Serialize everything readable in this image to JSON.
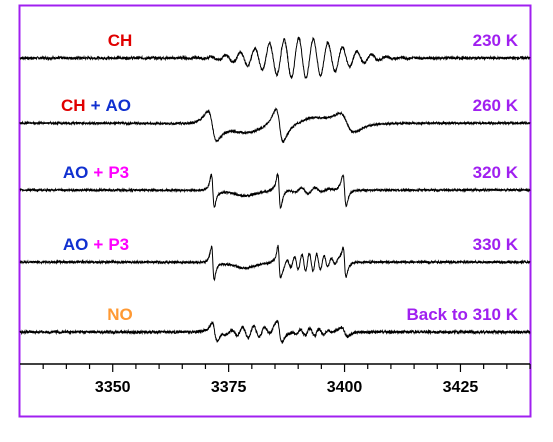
{
  "chart_data": {
    "type": "line",
    "title": "",
    "xlabel": "",
    "ylabel": "",
    "xlim": [
      3330,
      3440
    ],
    "x_ticks": [
      "3350",
      "3375",
      "3400",
      "3425"
    ],
    "x_tick_values": [
      3350,
      3375,
      3400,
      3425
    ],
    "grid": false,
    "frame_color": "#a020f0",
    "trace_color": "#000000",
    "traces": [
      {
        "label_parts": [
          {
            "text": "CH",
            "color": "#e00000"
          }
        ],
        "temperature": "230 K",
        "temperature_color": "#a020f0",
        "signal": "hyperfine multiplet centered near 3390"
      },
      {
        "label_parts": [
          {
            "text": "CH",
            "color": "#e00000"
          },
          {
            "text": "+",
            "color": "#1030d0"
          },
          {
            "text": "AO",
            "color": "#1030d0"
          }
        ],
        "temperature": "260 K",
        "temperature_color": "#a020f0",
        "signal": "broad three-line derivative pattern"
      },
      {
        "label_parts": [
          {
            "text": "AO",
            "color": "#1030d0"
          },
          {
            "text": "+",
            "color": "#ff00ff"
          },
          {
            "text": "P3",
            "color": "#ff00ff"
          }
        ],
        "temperature": "320 K",
        "temperature_color": "#a020f0",
        "signal": "sharp triplet with small central structure"
      },
      {
        "label_parts": [
          {
            "text": "AO",
            "color": "#1030d0"
          },
          {
            "text": "+",
            "color": "#ff00ff"
          },
          {
            "text": "P3",
            "color": "#ff00ff"
          }
        ],
        "temperature": "330 K",
        "temperature_color": "#a020f0",
        "signal": "sharp triplet with resolved central multiplet"
      },
      {
        "label_parts": [
          {
            "text": "NO",
            "color": "#ff9933"
          }
        ],
        "temperature": "Back to 310 K",
        "temperature_color": "#a020f0",
        "signal": "three-line pattern with reduced amplitude"
      }
    ]
  }
}
